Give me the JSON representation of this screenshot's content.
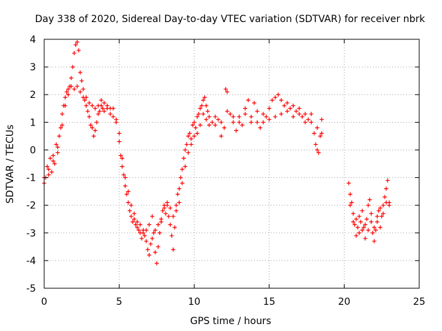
{
  "chart_data": {
    "type": "scatter",
    "title": "Day 338 of 2020, Sidereal Day-to-day VTEC variation (SDTVAR) for receiver nbrk",
    "xlabel": "GPS time / hours",
    "ylabel": "SDTVAR / TECUs",
    "xlim": [
      0,
      25
    ],
    "ylim": [
      -5,
      4
    ],
    "xticks": [
      0,
      5,
      10,
      15,
      20,
      25
    ],
    "yticks": [
      -5,
      -4,
      -3,
      -2,
      -1,
      0,
      1,
      2,
      3,
      4
    ],
    "grid": true,
    "marker": "plus",
    "series": [
      {
        "name": "SDTVAR",
        "color": "#ff0000",
        "points": [
          [
            0.0,
            -1.2
          ],
          [
            0.1,
            -1.0
          ],
          [
            0.2,
            -0.6
          ],
          [
            0.3,
            -0.9
          ],
          [
            0.4,
            -0.3
          ],
          [
            0.5,
            -0.8
          ],
          [
            0.6,
            -0.2
          ],
          [
            0.7,
            -0.5
          ],
          [
            0.8,
            0.2
          ],
          [
            0.9,
            -0.1
          ],
          [
            1.0,
            0.5
          ],
          [
            1.1,
            0.8
          ],
          [
            1.2,
            1.3
          ],
          [
            1.3,
            1.6
          ],
          [
            1.4,
            1.9
          ],
          [
            1.5,
            2.1
          ],
          [
            1.6,
            2.2
          ],
          [
            1.7,
            2.3
          ],
          [
            1.8,
            2.6
          ],
          [
            1.9,
            3.0
          ],
          [
            2.0,
            3.5
          ],
          [
            2.1,
            3.8
          ],
          [
            2.2,
            3.9
          ],
          [
            2.3,
            3.6
          ],
          [
            2.4,
            2.8
          ],
          [
            2.5,
            2.5
          ],
          [
            2.6,
            2.2
          ],
          [
            2.7,
            1.8
          ],
          [
            2.8,
            1.6
          ],
          [
            2.9,
            1.4
          ],
          [
            3.0,
            1.2
          ],
          [
            3.1,
            0.9
          ],
          [
            3.2,
            0.8
          ],
          [
            3.3,
            0.5
          ],
          [
            3.4,
            0.7
          ],
          [
            3.5,
            1.0
          ],
          [
            3.6,
            1.3
          ],
          [
            3.7,
            1.4
          ],
          [
            3.8,
            1.6
          ],
          [
            3.9,
            1.5
          ],
          [
            4.0,
            1.4
          ],
          [
            4.2,
            1.6
          ],
          [
            4.4,
            1.5
          ],
          [
            4.6,
            1.2
          ],
          [
            4.8,
            1.0
          ],
          [
            5.0,
            0.3
          ],
          [
            5.1,
            -0.2
          ],
          [
            5.2,
            -0.6
          ],
          [
            5.3,
            -0.9
          ],
          [
            5.4,
            -1.3
          ],
          [
            5.5,
            -1.6
          ],
          [
            5.6,
            -1.9
          ],
          [
            5.7,
            -2.2
          ],
          [
            5.8,
            -2.4
          ],
          [
            5.9,
            -2.6
          ],
          [
            6.0,
            -2.5
          ],
          [
            6.1,
            -2.7
          ],
          [
            6.2,
            -2.8
          ],
          [
            6.3,
            -2.9
          ],
          [
            6.4,
            -3.0
          ],
          [
            6.5,
            -3.2
          ],
          [
            6.6,
            -2.9
          ],
          [
            6.7,
            -3.1
          ],
          [
            6.8,
            -3.3
          ],
          [
            6.9,
            -3.6
          ],
          [
            7.0,
            -3.8
          ],
          [
            7.1,
            -3.4
          ],
          [
            7.2,
            -3.2
          ],
          [
            7.3,
            -3.0
          ],
          [
            7.4,
            -3.7
          ],
          [
            7.5,
            -4.1
          ],
          [
            7.6,
            -3.5
          ],
          [
            7.7,
            -3.0
          ],
          [
            7.8,
            -2.6
          ],
          [
            7.9,
            -2.2
          ],
          [
            8.0,
            -2.1
          ],
          [
            8.1,
            -2.3
          ],
          [
            8.2,
            -2.0
          ],
          [
            8.3,
            -2.4
          ],
          [
            8.4,
            -2.7
          ],
          [
            8.5,
            -3.1
          ],
          [
            8.6,
            -3.6
          ],
          [
            8.7,
            -2.8
          ],
          [
            8.8,
            -2.0
          ],
          [
            8.9,
            -1.6
          ],
          [
            9.0,
            -1.4
          ],
          [
            9.1,
            -1.0
          ],
          [
            9.2,
            -0.7
          ],
          [
            9.3,
            -0.3
          ],
          [
            9.4,
            0.0
          ],
          [
            9.5,
            0.2
          ],
          [
            9.6,
            0.5
          ],
          [
            9.7,
            0.6
          ],
          [
            9.8,
            0.4
          ],
          [
            9.9,
            0.9
          ],
          [
            10.0,
            1.0
          ],
          [
            10.1,
            0.8
          ],
          [
            10.2,
            1.2
          ],
          [
            10.3,
            1.3
          ],
          [
            10.4,
            1.5
          ],
          [
            10.5,
            1.6
          ],
          [
            10.6,
            1.8
          ],
          [
            10.7,
            1.9
          ],
          [
            10.8,
            1.6
          ],
          [
            10.9,
            1.4
          ],
          [
            11.0,
            1.2
          ],
          [
            11.2,
            1.0
          ],
          [
            11.4,
            0.9
          ],
          [
            11.6,
            1.1
          ],
          [
            11.8,
            0.5
          ],
          [
            12.0,
            0.8
          ],
          [
            12.1,
            2.2
          ],
          [
            12.2,
            2.1
          ],
          [
            12.4,
            1.3
          ],
          [
            12.6,
            1.0
          ],
          [
            12.8,
            0.7
          ],
          [
            13.0,
            1.2
          ],
          [
            13.2,
            0.9
          ],
          [
            13.4,
            1.5
          ],
          [
            13.6,
            1.8
          ],
          [
            13.8,
            1.2
          ],
          [
            14.0,
            1.7
          ],
          [
            14.2,
            1.0
          ],
          [
            14.4,
            0.8
          ],
          [
            14.6,
            1.3
          ],
          [
            14.8,
            1.2
          ],
          [
            15.0,
            1.5
          ],
          [
            15.2,
            1.8
          ],
          [
            15.4,
            1.9
          ],
          [
            15.6,
            2.0
          ],
          [
            15.8,
            1.8
          ],
          [
            16.0,
            1.6
          ],
          [
            16.2,
            1.7
          ],
          [
            16.4,
            1.5
          ],
          [
            16.6,
            1.6
          ],
          [
            16.8,
            1.4
          ],
          [
            17.0,
            1.3
          ],
          [
            17.2,
            1.2
          ],
          [
            17.4,
            1.0
          ],
          [
            17.6,
            1.1
          ],
          [
            17.8,
            1.3
          ],
          [
            18.0,
            0.6
          ],
          [
            18.1,
            0.2
          ],
          [
            18.2,
            0.0
          ],
          [
            18.3,
            -0.1
          ],
          [
            18.4,
            0.5
          ],
          [
            18.5,
            1.1
          ],
          [
            20.3,
            -1.2
          ],
          [
            20.4,
            -1.6
          ],
          [
            20.5,
            -1.9
          ],
          [
            20.6,
            -2.3
          ],
          [
            20.7,
            -2.7
          ],
          [
            20.8,
            -3.1
          ],
          [
            20.9,
            -2.8
          ],
          [
            21.0,
            -3.0
          ],
          [
            21.1,
            -2.6
          ],
          [
            21.2,
            -2.2
          ],
          [
            21.3,
            -2.8
          ],
          [
            21.4,
            -3.2
          ],
          [
            21.5,
            -2.5
          ],
          [
            21.6,
            -2.0
          ],
          [
            21.7,
            -1.8
          ],
          [
            21.8,
            -2.3
          ],
          [
            21.9,
            -3.0
          ],
          [
            22.0,
            -3.3
          ],
          [
            22.1,
            -2.9
          ],
          [
            22.2,
            -2.6
          ],
          [
            22.3,
            -2.2
          ],
          [
            22.4,
            -2.8
          ],
          [
            22.5,
            -2.4
          ],
          [
            22.6,
            -2.0
          ],
          [
            22.7,
            -1.7
          ],
          [
            22.8,
            -1.4
          ],
          [
            22.9,
            -1.1
          ],
          [
            23.0,
            -1.9
          ]
        ],
        "band_points": [
          [
            0.0,
            -1.0
          ],
          [
            0.3,
            -0.7
          ],
          [
            0.6,
            -0.4
          ],
          [
            0.9,
            0.1
          ],
          [
            1.2,
            0.9
          ],
          [
            1.4,
            1.6
          ],
          [
            1.6,
            2.0
          ],
          [
            1.8,
            2.3
          ],
          [
            2.0,
            2.2
          ],
          [
            2.2,
            2.3
          ],
          [
            2.4,
            2.1
          ],
          [
            2.6,
            1.9
          ],
          [
            2.8,
            1.9
          ],
          [
            3.0,
            1.7
          ],
          [
            3.2,
            1.6
          ],
          [
            3.4,
            1.5
          ],
          [
            3.6,
            1.6
          ],
          [
            3.8,
            1.8
          ],
          [
            4.0,
            1.7
          ],
          [
            4.2,
            1.5
          ],
          [
            4.4,
            1.3
          ],
          [
            4.6,
            1.5
          ],
          [
            4.8,
            1.1
          ],
          [
            5.0,
            0.6
          ],
          [
            5.2,
            -0.3
          ],
          [
            5.4,
            -1.0
          ],
          [
            5.6,
            -1.5
          ],
          [
            5.8,
            -2.0
          ],
          [
            6.0,
            -2.3
          ],
          [
            6.2,
            -2.6
          ],
          [
            6.4,
            -2.7
          ],
          [
            6.6,
            -3.0
          ],
          [
            6.8,
            -2.9
          ],
          [
            7.0,
            -2.7
          ],
          [
            7.2,
            -2.4
          ],
          [
            7.4,
            -2.9
          ],
          [
            7.6,
            -2.7
          ],
          [
            7.8,
            -2.5
          ],
          [
            8.0,
            -2.0
          ],
          [
            8.2,
            -1.9
          ],
          [
            8.4,
            -2.1
          ],
          [
            8.6,
            -2.4
          ],
          [
            8.8,
            -2.2
          ],
          [
            9.0,
            -1.9
          ],
          [
            9.2,
            -1.2
          ],
          [
            9.4,
            -0.6
          ],
          [
            9.6,
            -0.1
          ],
          [
            9.8,
            0.2
          ],
          [
            10.0,
            0.5
          ],
          [
            10.2,
            0.6
          ],
          [
            10.4,
            0.9
          ],
          [
            10.6,
            1.3
          ],
          [
            10.8,
            1.1
          ],
          [
            11.0,
            0.9
          ],
          [
            11.4,
            1.2
          ],
          [
            11.8,
            1.0
          ],
          [
            12.2,
            1.4
          ],
          [
            12.6,
            1.2
          ],
          [
            13.0,
            1.0
          ],
          [
            13.4,
            1.3
          ],
          [
            13.8,
            1.0
          ],
          [
            14.2,
            1.4
          ],
          [
            14.6,
            1.0
          ],
          [
            15.0,
            1.1
          ],
          [
            15.4,
            1.2
          ],
          [
            15.8,
            1.3
          ],
          [
            16.2,
            1.4
          ],
          [
            16.6,
            1.2
          ],
          [
            17.0,
            1.5
          ],
          [
            17.4,
            1.3
          ],
          [
            17.8,
            1.0
          ],
          [
            18.2,
            0.8
          ],
          [
            18.5,
            0.6
          ],
          [
            20.4,
            -2.0
          ],
          [
            20.6,
            -2.6
          ],
          [
            20.8,
            -2.5
          ],
          [
            21.0,
            -2.4
          ],
          [
            21.2,
            -2.9
          ],
          [
            21.4,
            -2.7
          ],
          [
            21.6,
            -2.9
          ],
          [
            21.8,
            -2.6
          ],
          [
            22.0,
            -2.8
          ],
          [
            22.2,
            -2.4
          ],
          [
            22.4,
            -2.1
          ],
          [
            22.6,
            -2.3
          ],
          [
            22.8,
            -1.9
          ],
          [
            23.0,
            -2.0
          ]
        ]
      }
    ]
  }
}
